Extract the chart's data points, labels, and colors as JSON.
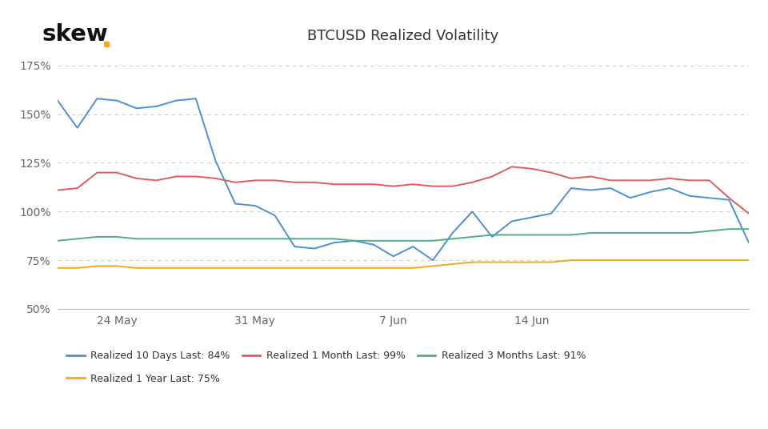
{
  "title": "BTCUSD Realized Volatility",
  "background_color": "#ffffff",
  "skew_dot_color": "#f5a623",
  "ylim": [
    50,
    180
  ],
  "yticks": [
    50,
    75,
    100,
    125,
    150,
    175
  ],
  "ytick_labels": [
    "50%",
    "75%",
    "100%",
    "125%",
    "150%",
    "175%"
  ],
  "grid_color": "#cccccc",
  "xtick_positions": [
    3,
    10,
    17,
    24
  ],
  "xtick_labels": [
    "24 May",
    "31 May",
    "7 Jun",
    "14 Jun"
  ],
  "series_order": [
    "10days",
    "1month",
    "3months",
    "1year"
  ],
  "series": {
    "10days": {
      "label": "Realized 10 Days",
      "last": "84%",
      "color": "#4a90d9",
      "values": [
        157,
        143,
        158,
        157,
        153,
        154,
        157,
        158,
        126,
        104,
        103,
        98,
        82,
        81,
        84,
        85,
        83,
        77,
        82,
        75,
        89,
        100,
        87,
        95,
        97,
        99,
        112,
        111,
        112,
        107,
        110,
        112,
        108,
        107,
        106,
        84
      ]
    },
    "1month": {
      "label": "Realized 1 Month",
      "last": "99%",
      "color": "#e05c5c",
      "values": [
        111,
        112,
        120,
        120,
        117,
        116,
        118,
        118,
        117,
        115,
        116,
        116,
        115,
        115,
        114,
        114,
        114,
        113,
        114,
        113,
        113,
        115,
        118,
        123,
        122,
        120,
        117,
        118,
        116,
        116,
        116,
        117,
        116,
        116,
        107,
        99
      ]
    },
    "3months": {
      "label": "Realized 3 Months",
      "last": "91%",
      "color": "#4caf7d",
      "values": [
        85,
        86,
        87,
        87,
        86,
        86,
        86,
        86,
        86,
        86,
        86,
        86,
        86,
        86,
        86,
        85,
        85,
        85,
        85,
        85,
        86,
        87,
        88,
        88,
        88,
        88,
        88,
        89,
        89,
        89,
        89,
        89,
        89,
        90,
        91,
        91
      ]
    },
    "1year": {
      "label": "Realized 1 Year",
      "last": "75%",
      "color": "#f5a623",
      "values": [
        71,
        71,
        72,
        72,
        71,
        71,
        71,
        71,
        71,
        71,
        71,
        71,
        71,
        71,
        71,
        71,
        71,
        71,
        71,
        72,
        73,
        74,
        74,
        74,
        74,
        74,
        75,
        75,
        75,
        75,
        75,
        75,
        75,
        75,
        75,
        75
      ]
    }
  },
  "legend_label_color": "#333333",
  "legend_last_color": "#888888",
  "title_fontsize": 13,
  "axis_label_fontsize": 10,
  "legend_fontsize": 9
}
